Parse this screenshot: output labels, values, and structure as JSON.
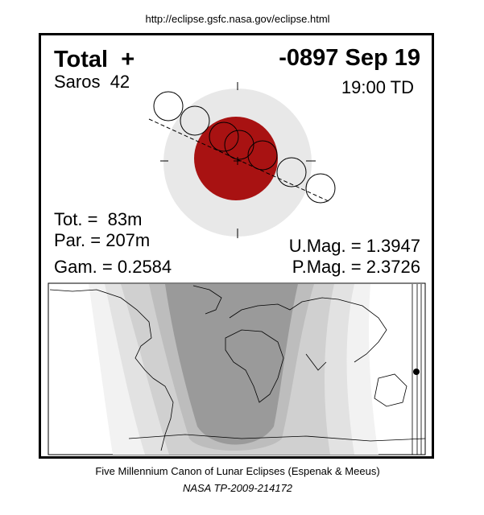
{
  "header": {
    "url": "http://eclipse.gsfc.nasa.gov/eclipse.html"
  },
  "panel": {
    "type": "Total  +",
    "date": "-0897 Sep 19",
    "saros": "Saros  42",
    "time": "19:00 TD"
  },
  "stats": {
    "tot": "Tot. =  83m",
    "par": "Par. = 207m",
    "gam": "Gam. = 0.2584",
    "umag": "U.Mag. = 1.3947",
    "pmag": "P.Mag. = 2.3726"
  },
  "footer": {
    "canon": "Five Millennium Canon of Lunar Eclipses (Espenak & Meeus)",
    "ref": "NASA TP-2009-214172"
  }
}
